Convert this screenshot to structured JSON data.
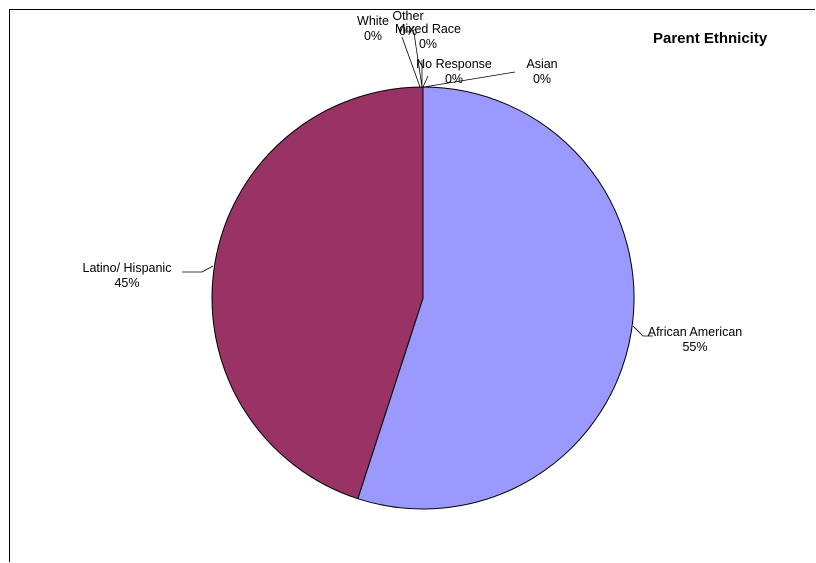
{
  "chart_data": {
    "type": "pie",
    "title": "Parent Ethnicity",
    "slices": [
      {
        "label": "African American",
        "value": 55,
        "value_label": "55%",
        "color": "#9999FF"
      },
      {
        "label": "Latino/ Hispanic",
        "value": 45,
        "value_label": "45%",
        "color": "#993366"
      },
      {
        "label": "White",
        "value": 0,
        "value_label": "0%",
        "color": "#FFFFCC"
      },
      {
        "label": "Other",
        "value": 0,
        "value_label": "0%",
        "color": "#CCFFFF"
      },
      {
        "label": "Mixed Race",
        "value": 0,
        "value_label": "0%",
        "color": "#660066"
      },
      {
        "label": "No Response",
        "value": 0,
        "value_label": "0%",
        "color": "#FF8080"
      },
      {
        "label": "Asian",
        "value": 0,
        "value_label": "0%",
        "color": "#0066CC"
      }
    ],
    "legend": "none"
  }
}
